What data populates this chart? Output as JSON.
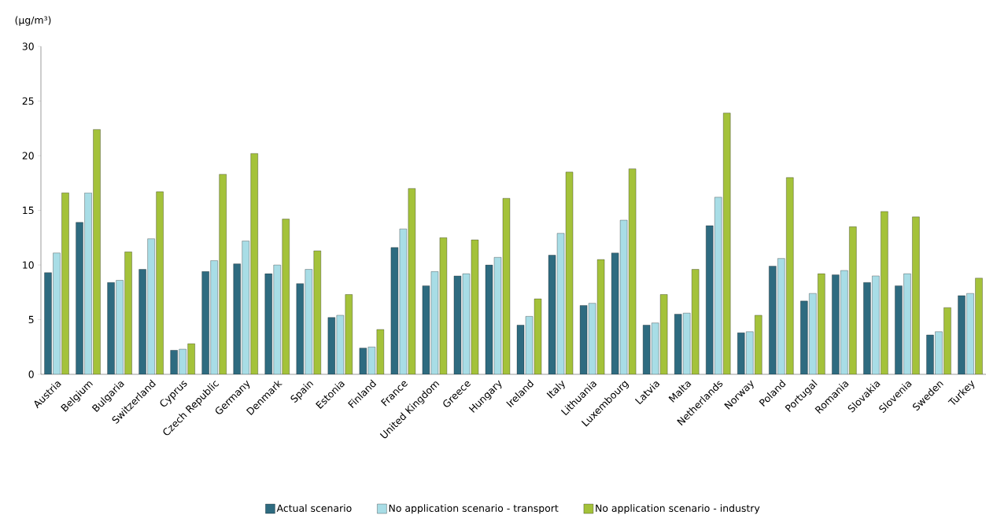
{
  "chart_data": {
    "type": "bar",
    "ylabel": "(µg/m³)",
    "categories": [
      "Austria",
      "Belgium",
      "Bulgaria",
      "Switzerland",
      "Cyprus",
      "Czech Republic",
      "Germany",
      "Denmark",
      "Spain",
      "Estonia",
      "Finland",
      "France",
      "United Kingdom",
      "Greece",
      "Hungary",
      "Ireland",
      "Italy",
      "Lithuania",
      "Luxembourg",
      "Latvia",
      "Malta",
      "Netherlands",
      "Norway",
      "Poland",
      "Portugal",
      "Romania",
      "Slovakia",
      "Slovenia",
      "Sweden",
      "Turkey"
    ],
    "series": [
      {
        "name": "Actual scenario",
        "color": "#2e6b80",
        "values": [
          9.3,
          13.9,
          8.4,
          9.6,
          2.2,
          9.4,
          10.1,
          9.2,
          8.3,
          5.2,
          2.4,
          11.6,
          8.1,
          9.0,
          10.0,
          4.5,
          10.9,
          6.3,
          11.1,
          4.5,
          5.5,
          13.6,
          3.8,
          9.9,
          6.7,
          9.1,
          8.4,
          8.1,
          3.6,
          7.2
        ]
      },
      {
        "name": "No application scenario - transport",
        "color": "#a8dde6",
        "values": [
          11.1,
          16.6,
          8.6,
          12.4,
          2.3,
          10.4,
          12.2,
          10.0,
          9.6,
          5.4,
          2.5,
          13.3,
          9.4,
          9.2,
          10.7,
          5.3,
          12.9,
          6.5,
          14.1,
          4.7,
          5.6,
          16.2,
          3.9,
          10.6,
          7.4,
          9.5,
          9.0,
          9.2,
          3.9,
          7.4
        ]
      },
      {
        "name": "No application scenario - industry",
        "color": "#a4c23a",
        "values": [
          16.6,
          22.4,
          11.2,
          16.7,
          2.8,
          18.3,
          20.2,
          14.2,
          11.3,
          7.3,
          4.1,
          17.0,
          12.5,
          12.3,
          16.1,
          6.9,
          18.5,
          10.5,
          18.8,
          7.3,
          9.6,
          23.9,
          5.4,
          18.0,
          9.2,
          13.5,
          14.9,
          14.4,
          6.1,
          8.8
        ]
      }
    ],
    "ylim": [
      0,
      30
    ],
    "yticks": [
      0,
      5,
      10,
      15,
      20,
      25,
      30
    ],
    "legend": "bottom"
  }
}
